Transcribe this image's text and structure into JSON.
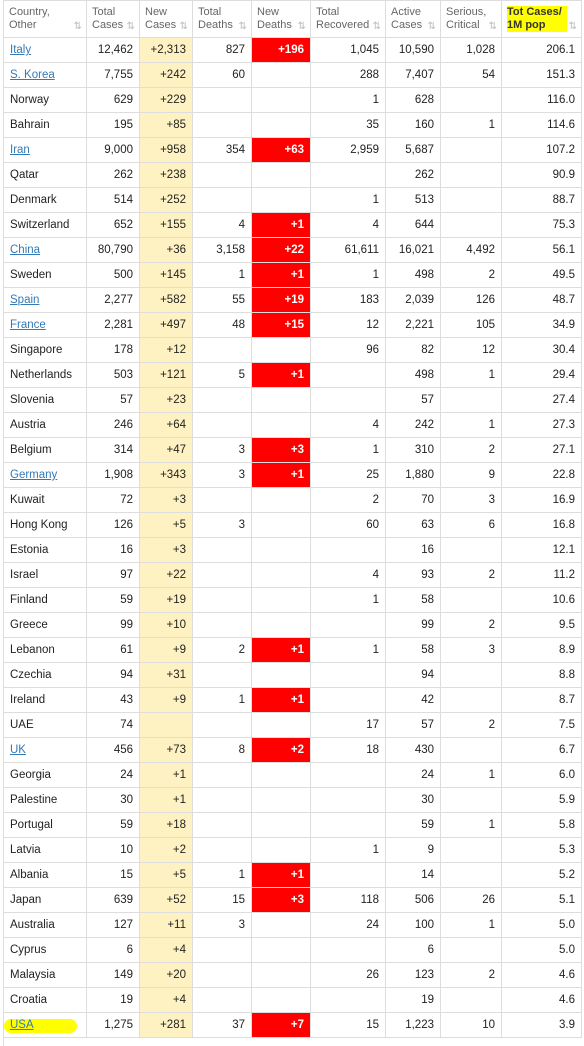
{
  "table": {
    "headers": [
      {
        "line1": "Country,",
        "line2": "Other"
      },
      {
        "line1": "Total",
        "line2": "Cases"
      },
      {
        "line1": "New",
        "line2": "Cases"
      },
      {
        "line1": "Total",
        "line2": "Deaths"
      },
      {
        "line1": "New",
        "line2": "Deaths"
      },
      {
        "line1": "Total",
        "line2": "Recovered"
      },
      {
        "line1": "Active",
        "line2": "Cases"
      },
      {
        "line1": "Serious,",
        "line2": "Critical"
      },
      {
        "line1": "Tot Cases/",
        "line2": "1M pop"
      }
    ],
    "sort_icon": "⇅",
    "highlight_color": "#ffff00",
    "new_cases_bg": "#fff2c2",
    "new_deaths_bg": "#ff0000",
    "link_color": "#337ab7",
    "rows": [
      {
        "country": "Italy",
        "link": true,
        "total": "12,462",
        "new": "+2,313",
        "deaths": "827",
        "newDeaths": "+196",
        "recovered": "1,045",
        "active": "10,590",
        "serious": "1,028",
        "perM": "206.1"
      },
      {
        "country": "S. Korea",
        "link": true,
        "total": "7,755",
        "new": "+242",
        "deaths": "60",
        "newDeaths": "",
        "recovered": "288",
        "active": "7,407",
        "serious": "54",
        "perM": "151.3"
      },
      {
        "country": "Norway",
        "link": false,
        "total": "629",
        "new": "+229",
        "deaths": "",
        "newDeaths": "",
        "recovered": "1",
        "active": "628",
        "serious": "",
        "perM": "116.0"
      },
      {
        "country": "Bahrain",
        "link": false,
        "total": "195",
        "new": "+85",
        "deaths": "",
        "newDeaths": "",
        "recovered": "35",
        "active": "160",
        "serious": "1",
        "perM": "114.6"
      },
      {
        "country": "Iran",
        "link": true,
        "total": "9,000",
        "new": "+958",
        "deaths": "354",
        "newDeaths": "+63",
        "recovered": "2,959",
        "active": "5,687",
        "serious": "",
        "perM": "107.2"
      },
      {
        "country": "Qatar",
        "link": false,
        "total": "262",
        "new": "+238",
        "deaths": "",
        "newDeaths": "",
        "recovered": "",
        "active": "262",
        "serious": "",
        "perM": "90.9"
      },
      {
        "country": "Denmark",
        "link": false,
        "total": "514",
        "new": "+252",
        "deaths": "",
        "newDeaths": "",
        "recovered": "1",
        "active": "513",
        "serious": "",
        "perM": "88.7"
      },
      {
        "country": "Switzerland",
        "link": false,
        "total": "652",
        "new": "+155",
        "deaths": "4",
        "newDeaths": "+1",
        "recovered": "4",
        "active": "644",
        "serious": "",
        "perM": "75.3"
      },
      {
        "country": "China",
        "link": true,
        "total": "80,790",
        "new": "+36",
        "deaths": "3,158",
        "newDeaths": "+22",
        "recovered": "61,611",
        "active": "16,021",
        "serious": "4,492",
        "perM": "56.1"
      },
      {
        "country": "Sweden",
        "link": false,
        "total": "500",
        "new": "+145",
        "deaths": "1",
        "newDeaths": "+1",
        "recovered": "1",
        "active": "498",
        "serious": "2",
        "perM": "49.5"
      },
      {
        "country": "Spain",
        "link": true,
        "total": "2,277",
        "new": "+582",
        "deaths": "55",
        "newDeaths": "+19",
        "recovered": "183",
        "active": "2,039",
        "serious": "126",
        "perM": "48.7"
      },
      {
        "country": "France",
        "link": true,
        "total": "2,281",
        "new": "+497",
        "deaths": "48",
        "newDeaths": "+15",
        "recovered": "12",
        "active": "2,221",
        "serious": "105",
        "perM": "34.9"
      },
      {
        "country": "Singapore",
        "link": false,
        "total": "178",
        "new": "+12",
        "deaths": "",
        "newDeaths": "",
        "recovered": "96",
        "active": "82",
        "serious": "12",
        "perM": "30.4"
      },
      {
        "country": "Netherlands",
        "link": false,
        "total": "503",
        "new": "+121",
        "deaths": "5",
        "newDeaths": "+1",
        "recovered": "",
        "active": "498",
        "serious": "1",
        "perM": "29.4"
      },
      {
        "country": "Slovenia",
        "link": false,
        "total": "57",
        "new": "+23",
        "deaths": "",
        "newDeaths": "",
        "recovered": "",
        "active": "57",
        "serious": "",
        "perM": "27.4"
      },
      {
        "country": "Austria",
        "link": false,
        "total": "246",
        "new": "+64",
        "deaths": "",
        "newDeaths": "",
        "recovered": "4",
        "active": "242",
        "serious": "1",
        "perM": "27.3"
      },
      {
        "country": "Belgium",
        "link": false,
        "total": "314",
        "new": "+47",
        "deaths": "3",
        "newDeaths": "+3",
        "recovered": "1",
        "active": "310",
        "serious": "2",
        "perM": "27.1"
      },
      {
        "country": "Germany",
        "link": true,
        "total": "1,908",
        "new": "+343",
        "deaths": "3",
        "newDeaths": "+1",
        "recovered": "25",
        "active": "1,880",
        "serious": "9",
        "perM": "22.8"
      },
      {
        "country": "Kuwait",
        "link": false,
        "total": "72",
        "new": "+3",
        "deaths": "",
        "newDeaths": "",
        "recovered": "2",
        "active": "70",
        "serious": "3",
        "perM": "16.9"
      },
      {
        "country": "Hong Kong",
        "link": false,
        "total": "126",
        "new": "+5",
        "deaths": "3",
        "newDeaths": "",
        "recovered": "60",
        "active": "63",
        "serious": "6",
        "perM": "16.8"
      },
      {
        "country": "Estonia",
        "link": false,
        "total": "16",
        "new": "+3",
        "deaths": "",
        "newDeaths": "",
        "recovered": "",
        "active": "16",
        "serious": "",
        "perM": "12.1"
      },
      {
        "country": "Israel",
        "link": false,
        "total": "97",
        "new": "+22",
        "deaths": "",
        "newDeaths": "",
        "recovered": "4",
        "active": "93",
        "serious": "2",
        "perM": "11.2"
      },
      {
        "country": "Finland",
        "link": false,
        "total": "59",
        "new": "+19",
        "deaths": "",
        "newDeaths": "",
        "recovered": "1",
        "active": "58",
        "serious": "",
        "perM": "10.6"
      },
      {
        "country": "Greece",
        "link": false,
        "total": "99",
        "new": "+10",
        "deaths": "",
        "newDeaths": "",
        "recovered": "",
        "active": "99",
        "serious": "2",
        "perM": "9.5"
      },
      {
        "country": "Lebanon",
        "link": false,
        "total": "61",
        "new": "+9",
        "deaths": "2",
        "newDeaths": "+1",
        "recovered": "1",
        "active": "58",
        "serious": "3",
        "perM": "8.9"
      },
      {
        "country": "Czechia",
        "link": false,
        "total": "94",
        "new": "+31",
        "deaths": "",
        "newDeaths": "",
        "recovered": "",
        "active": "94",
        "serious": "",
        "perM": "8.8"
      },
      {
        "country": "Ireland",
        "link": false,
        "total": "43",
        "new": "+9",
        "deaths": "1",
        "newDeaths": "+1",
        "recovered": "",
        "active": "42",
        "serious": "",
        "perM": "8.7"
      },
      {
        "country": "UAE",
        "link": false,
        "total": "74",
        "new": "",
        "deaths": "",
        "newDeaths": "",
        "recovered": "17",
        "active": "57",
        "serious": "2",
        "perM": "7.5"
      },
      {
        "country": "UK",
        "link": true,
        "total": "456",
        "new": "+73",
        "deaths": "8",
        "newDeaths": "+2",
        "recovered": "18",
        "active": "430",
        "serious": "",
        "perM": "6.7"
      },
      {
        "country": "Georgia",
        "link": false,
        "total": "24",
        "new": "+1",
        "deaths": "",
        "newDeaths": "",
        "recovered": "",
        "active": "24",
        "serious": "1",
        "perM": "6.0"
      },
      {
        "country": "Palestine",
        "link": false,
        "total": "30",
        "new": "+1",
        "deaths": "",
        "newDeaths": "",
        "recovered": "",
        "active": "30",
        "serious": "",
        "perM": "5.9"
      },
      {
        "country": "Portugal",
        "link": false,
        "total": "59",
        "new": "+18",
        "deaths": "",
        "newDeaths": "",
        "recovered": "",
        "active": "59",
        "serious": "1",
        "perM": "5.8"
      },
      {
        "country": "Latvia",
        "link": false,
        "total": "10",
        "new": "+2",
        "deaths": "",
        "newDeaths": "",
        "recovered": "1",
        "active": "9",
        "serious": "",
        "perM": "5.3"
      },
      {
        "country": "Albania",
        "link": false,
        "total": "15",
        "new": "+5",
        "deaths": "1",
        "newDeaths": "+1",
        "recovered": "",
        "active": "14",
        "serious": "",
        "perM": "5.2"
      },
      {
        "country": "Japan",
        "link": false,
        "total": "639",
        "new": "+52",
        "deaths": "15",
        "newDeaths": "+3",
        "recovered": "118",
        "active": "506",
        "serious": "26",
        "perM": "5.1"
      },
      {
        "country": "Australia",
        "link": false,
        "total": "127",
        "new": "+11",
        "deaths": "3",
        "newDeaths": "",
        "recovered": "24",
        "active": "100",
        "serious": "1",
        "perM": "5.0"
      },
      {
        "country": "Cyprus",
        "link": false,
        "total": "6",
        "new": "+4",
        "deaths": "",
        "newDeaths": "",
        "recovered": "",
        "active": "6",
        "serious": "",
        "perM": "5.0"
      },
      {
        "country": "Malaysia",
        "link": false,
        "total": "149",
        "new": "+20",
        "deaths": "",
        "newDeaths": "",
        "recovered": "26",
        "active": "123",
        "serious": "2",
        "perM": "4.6"
      },
      {
        "country": "Croatia",
        "link": false,
        "total": "19",
        "new": "+4",
        "deaths": "",
        "newDeaths": "",
        "recovered": "",
        "active": "19",
        "serious": "",
        "perM": "4.6"
      },
      {
        "country": "USA",
        "link": true,
        "highlight": true,
        "total": "1,275",
        "new": "+281",
        "deaths": "37",
        "newDeaths": "+7",
        "recovered": "15",
        "active": "1,223",
        "serious": "10",
        "perM": "3.9"
      }
    ]
  }
}
